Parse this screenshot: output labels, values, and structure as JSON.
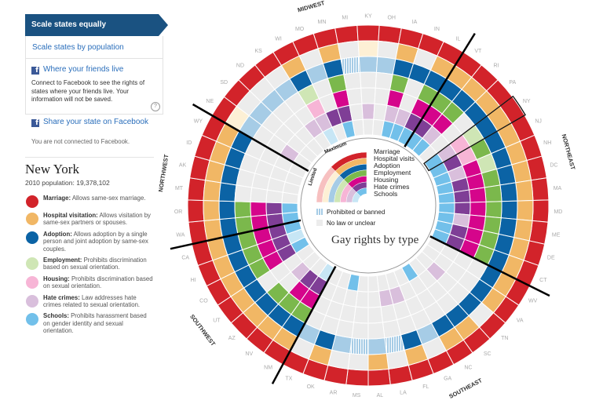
{
  "sidebar": {
    "scale_equal": "Scale states equally",
    "scale_population": "Scale states by population",
    "friends_title": "Where your friends live",
    "friends_desc": "Connect to Facebook to see the rights of states where your friends live. Your information will not be saved.",
    "help": "?",
    "share": "Share your state on Facebook",
    "status": "You are not connected to Facebook.",
    "fb_icon": "f"
  },
  "selected_state": {
    "name": "New York",
    "population": "2010 population: 19,378,102",
    "rights": [
      {
        "label": "Marriage:",
        "desc": "Allows same-sex marriage.",
        "level": "max"
      },
      {
        "label": "Hospital visitation:",
        "desc": "Allows visitation by same-sex partners or spouses.",
        "level": "max"
      },
      {
        "label": "Adoption:",
        "desc": "Allows adoption by a single person and joint adoption by same-sex couples.",
        "level": "max"
      },
      {
        "label": "Employment:",
        "desc": "Prohibits discrimination based on sexual orientation.",
        "level": "limited"
      },
      {
        "label": "Housing:",
        "desc": "Prohibits discrimination based on sexual orientation.",
        "level": "limited"
      },
      {
        "label": "Hate crimes:",
        "desc": "Law addresses hate crimes related to sexual orientation.",
        "level": "limited"
      },
      {
        "label": "Schools:",
        "desc": "Prohibits harassment based on gender identity and sexual orientation.",
        "level": "max"
      }
    ]
  },
  "chart_data": {
    "type": "radial-heatmap",
    "title": "Gay rights by type",
    "rings": [
      "Marriage",
      "Hospital visits",
      "Adoption",
      "Employment",
      "Housing",
      "Hate crimes",
      "Schools"
    ],
    "scale_labels": {
      "max": "Maximum",
      "limited": "Limited"
    },
    "legend_extra": {
      "banned": "Prohibited or banned",
      "none": "No law or unclear"
    },
    "colors": {
      "max": [
        "#d2232a",
        "#f1b765",
        "#0b63a5",
        "#7bb84c",
        "#d5058b",
        "#7f3e96",
        "#72c0ea"
      ],
      "limited": [
        "#f7c0c0",
        "#fdf0d5",
        "#a6cce6",
        "#cfe6b5",
        "#f7b5d6",
        "#d9bfdc",
        "#c7e6f5"
      ],
      "none": "#ececec",
      "banned": "#a6cce6"
    },
    "regions": [
      {
        "name": "MIDWEST"
      },
      {
        "name": "NORTHEAST"
      },
      {
        "name": "SOUTHEAST"
      },
      {
        "name": "SOUTHWEST"
      },
      {
        "name": "NORTHWEST"
      }
    ],
    "highlighted": "NY",
    "states": [
      {
        "abbr": "NE",
        "region": "MIDWEST",
        "values": [
          "max",
          "limited",
          "limited",
          "none",
          "none",
          "limited",
          "none"
        ]
      },
      {
        "abbr": "SD",
        "region": "MIDWEST",
        "values": [
          "max",
          "none",
          "limited",
          "none",
          "none",
          "none",
          "none"
        ]
      },
      {
        "abbr": "ND",
        "region": "MIDWEST",
        "values": [
          "max",
          "none",
          "limited",
          "none",
          "none",
          "none",
          "none"
        ]
      },
      {
        "abbr": "KS",
        "region": "MIDWEST",
        "values": [
          "max",
          "none",
          "limited",
          "none",
          "none",
          "limited",
          "none"
        ]
      },
      {
        "abbr": "WI",
        "region": "MIDWEST",
        "values": [
          "max",
          "max",
          "max",
          "limited",
          "limited",
          "limited",
          "limited"
        ]
      },
      {
        "abbr": "MO",
        "region": "MIDWEST",
        "values": [
          "max",
          "none",
          "limited",
          "none",
          "none",
          "max",
          "none"
        ]
      },
      {
        "abbr": "MN",
        "region": "MIDWEST",
        "values": [
          "max",
          "max",
          "max",
          "max",
          "max",
          "max",
          "max"
        ]
      },
      {
        "abbr": "MI",
        "region": "MIDWEST",
        "values": [
          "max",
          "none",
          "banned",
          "none",
          "none",
          "none",
          "none"
        ]
      },
      {
        "abbr": "KY",
        "region": "MIDWEST",
        "values": [
          "max",
          "limited",
          "limited",
          "none",
          "none",
          "limited",
          "none"
        ]
      },
      {
        "abbr": "OH",
        "region": "MIDWEST",
        "values": [
          "max",
          "none",
          "limited",
          "none",
          "none",
          "none",
          "none"
        ]
      },
      {
        "abbr": "IA",
        "region": "MIDWEST",
        "values": [
          "max",
          "max",
          "max",
          "max",
          "max",
          "limited",
          "max"
        ]
      },
      {
        "abbr": "IN",
        "region": "MIDWEST",
        "values": [
          "max",
          "none",
          "max",
          "none",
          "none",
          "limited",
          "max"
        ]
      },
      {
        "abbr": "IL",
        "region": "MIDWEST",
        "values": [
          "max",
          "max",
          "max",
          "max",
          "max",
          "max",
          "max"
        ]
      },
      {
        "abbr": "VT",
        "region": "NORTHEAST",
        "values": [
          "max",
          "max",
          "max",
          "max",
          "max",
          "max",
          "max"
        ]
      },
      {
        "abbr": "RI",
        "region": "NORTHEAST",
        "values": [
          "max",
          "max",
          "max",
          "max",
          "max",
          "limited",
          "max"
        ]
      },
      {
        "abbr": "PA",
        "region": "NORTHEAST",
        "values": [
          "max",
          "max",
          "max",
          "none",
          "none",
          "none",
          "none"
        ]
      },
      {
        "abbr": "NY",
        "region": "NORTHEAST",
        "values": [
          "max",
          "max",
          "max",
          "limited",
          "limited",
          "limited",
          "max"
        ]
      },
      {
        "abbr": "NJ",
        "region": "NORTHEAST",
        "values": [
          "max",
          "max",
          "max",
          "max",
          "limited",
          "max",
          "max"
        ]
      },
      {
        "abbr": "NH",
        "region": "NORTHEAST",
        "values": [
          "max",
          "max",
          "max",
          "limited",
          "max",
          "limited",
          "max"
        ]
      },
      {
        "abbr": "DC",
        "region": "NORTHEAST",
        "values": [
          "max",
          "max",
          "max",
          "max",
          "max",
          "max",
          "max"
        ]
      },
      {
        "abbr": "MA",
        "region": "NORTHEAST",
        "values": [
          "max",
          "max",
          "max",
          "max",
          "max",
          "max",
          "max"
        ]
      },
      {
        "abbr": "MD",
        "region": "NORTHEAST",
        "values": [
          "max",
          "max",
          "max",
          "max",
          "max",
          "max",
          "max"
        ]
      },
      {
        "abbr": "ME",
        "region": "NORTHEAST",
        "values": [
          "max",
          "max",
          "max",
          "max",
          "max",
          "limited",
          "max"
        ]
      },
      {
        "abbr": "DE",
        "region": "NORTHEAST",
        "values": [
          "max",
          "max",
          "max",
          "max",
          "max",
          "max",
          "max"
        ]
      },
      {
        "abbr": "CT",
        "region": "NORTHEAST",
        "values": [
          "max",
          "max",
          "max",
          "max",
          "max",
          "max",
          "max"
        ]
      },
      {
        "abbr": "WV",
        "region": "SOUTHEAST",
        "values": [
          "max",
          "max",
          "max",
          "none",
          "none",
          "none",
          "none"
        ]
      },
      {
        "abbr": "VA",
        "region": "SOUTHEAST",
        "values": [
          "max",
          "max",
          "max",
          "none",
          "none",
          "none",
          "none"
        ]
      },
      {
        "abbr": "TN",
        "region": "SOUTHEAST",
        "values": [
          "max",
          "none",
          "max",
          "none",
          "none",
          "limited",
          "none"
        ]
      },
      {
        "abbr": "SC",
        "region": "SOUTHEAST",
        "values": [
          "max",
          "max",
          "max",
          "none",
          "none",
          "none",
          "none"
        ]
      },
      {
        "abbr": "NC",
        "region": "SOUTHEAST",
        "values": [
          "max",
          "max",
          "max",
          "none",
          "none",
          "none",
          "max"
        ]
      },
      {
        "abbr": "GA",
        "region": "SOUTHEAST",
        "values": [
          "max",
          "none",
          "limited",
          "none",
          "none",
          "none",
          "none"
        ]
      },
      {
        "abbr": "FL",
        "region": "SOUTHEAST",
        "values": [
          "max",
          "max",
          "max",
          "none",
          "none",
          "limited",
          "none"
        ]
      },
      {
        "abbr": "LA",
        "region": "SOUTHEAST",
        "values": [
          "max",
          "none",
          "banned",
          "none",
          "none",
          "limited",
          "none"
        ]
      },
      {
        "abbr": "AL",
        "region": "SOUTHEAST",
        "values": [
          "max",
          "max",
          "limited",
          "none",
          "none",
          "none",
          "none"
        ]
      },
      {
        "abbr": "MS",
        "region": "SOUTHEAST",
        "values": [
          "max",
          "none",
          "banned",
          "none",
          "none",
          "none",
          "none"
        ]
      },
      {
        "abbr": "AR",
        "region": "SOUTHEAST",
        "values": [
          "max",
          "none",
          "limited",
          "none",
          "none",
          "none",
          "max"
        ]
      },
      {
        "abbr": "OK",
        "region": "SOUTHEAST",
        "values": [
          "max",
          "max",
          "max",
          "none",
          "none",
          "none",
          "none"
        ]
      },
      {
        "abbr": "TX",
        "region": "SOUTHEAST",
        "values": [
          "max",
          "none",
          "limited",
          "none",
          "none",
          "none",
          "none"
        ]
      },
      {
        "abbr": "NM",
        "region": "SOUTHWEST",
        "values": [
          "max",
          "max",
          "max",
          "max",
          "max",
          "max",
          "limited"
        ]
      },
      {
        "abbr": "NV",
        "region": "SOUTHWEST",
        "values": [
          "max",
          "max",
          "max",
          "max",
          "max",
          "max",
          "none"
        ]
      },
      {
        "abbr": "AZ",
        "region": "SOUTHWEST",
        "values": [
          "max",
          "max",
          "max",
          "max",
          "none",
          "limited",
          "none"
        ]
      },
      {
        "abbr": "UT",
        "region": "SOUTHWEST",
        "values": [
          "max",
          "max",
          "max",
          "none",
          "none",
          "none",
          "none"
        ]
      },
      {
        "abbr": "CO",
        "region": "SOUTHWEST",
        "values": [
          "max",
          "max",
          "max",
          "max",
          "max",
          "max",
          "max"
        ]
      },
      {
        "abbr": "HI",
        "region": "SOUTHWEST",
        "values": [
          "max",
          "max",
          "max",
          "max",
          "max",
          "max",
          "limited"
        ]
      },
      {
        "abbr": "CA",
        "region": "SOUTHWEST",
        "values": [
          "max",
          "max",
          "max",
          "max",
          "max",
          "max",
          "max"
        ]
      },
      {
        "abbr": "WA",
        "region": "NORTHWEST",
        "values": [
          "max",
          "max",
          "max",
          "max",
          "max",
          "max",
          "max"
        ]
      },
      {
        "abbr": "OR",
        "region": "NORTHWEST",
        "values": [
          "max",
          "max",
          "max",
          "max",
          "max",
          "max",
          "max"
        ]
      },
      {
        "abbr": "MT",
        "region": "NORTHWEST",
        "values": [
          "max",
          "max",
          "max",
          "none",
          "none",
          "none",
          "none"
        ]
      },
      {
        "abbr": "AK",
        "region": "NORTHWEST",
        "values": [
          "max",
          "max",
          "max",
          "none",
          "none",
          "none",
          "none"
        ]
      },
      {
        "abbr": "ID",
        "region": "NORTHWEST",
        "values": [
          "max",
          "max",
          "max",
          "none",
          "none",
          "none",
          "none"
        ]
      },
      {
        "abbr": "WY",
        "region": "NORTHWEST",
        "values": [
          "max",
          "max",
          "max",
          "none",
          "none",
          "none",
          "none"
        ]
      }
    ]
  }
}
